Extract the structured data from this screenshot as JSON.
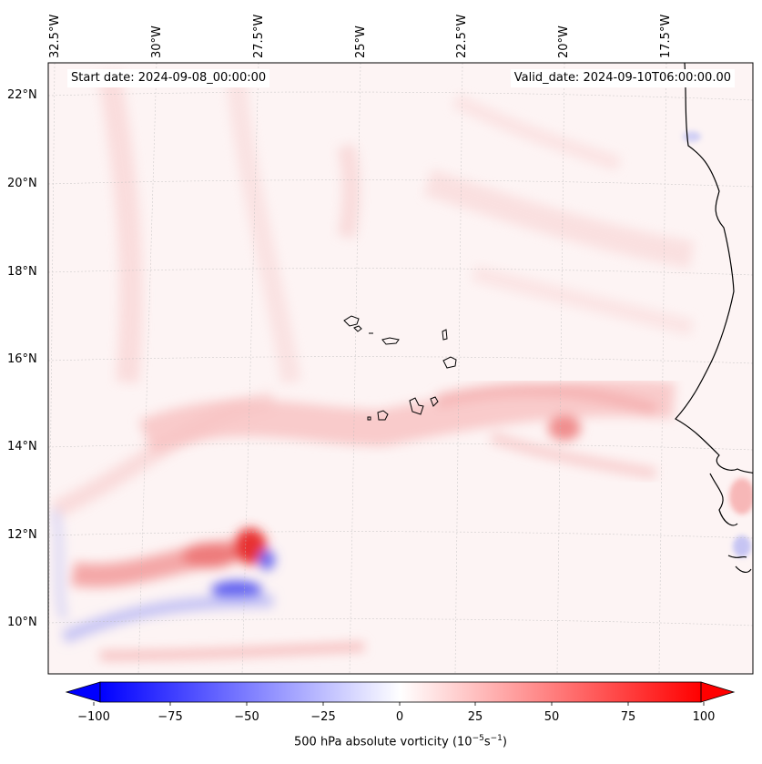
{
  "map": {
    "start_date": "Start date: 2024-09-08_00:00:00",
    "valid_date": "Valid_date: 2024-09-10T06:00:00.00",
    "lon_labels": [
      "32.5°W",
      "30°W",
      "27.5°W",
      "25°W",
      "22.5°W",
      "20°W",
      "17.5°W"
    ],
    "lat_labels": [
      "22°N",
      "20°N",
      "18°N",
      "16°N",
      "14°N",
      "12°N",
      "10°N"
    ],
    "colorbar": {
      "ticks": [
        "−100",
        "−75",
        "−50",
        "−25",
        "0",
        "25",
        "50",
        "75",
        "100"
      ],
      "label": "500 hPa absolute vorticity (10",
      "label_exp1": "−5",
      "label_mid": "s",
      "label_exp2": "−1",
      "label_end": ")",
      "cmap": "bwr",
      "min_color": "#0000ff",
      "mid_color": "#ffffff",
      "max_color": "#ff0000"
    }
  }
}
